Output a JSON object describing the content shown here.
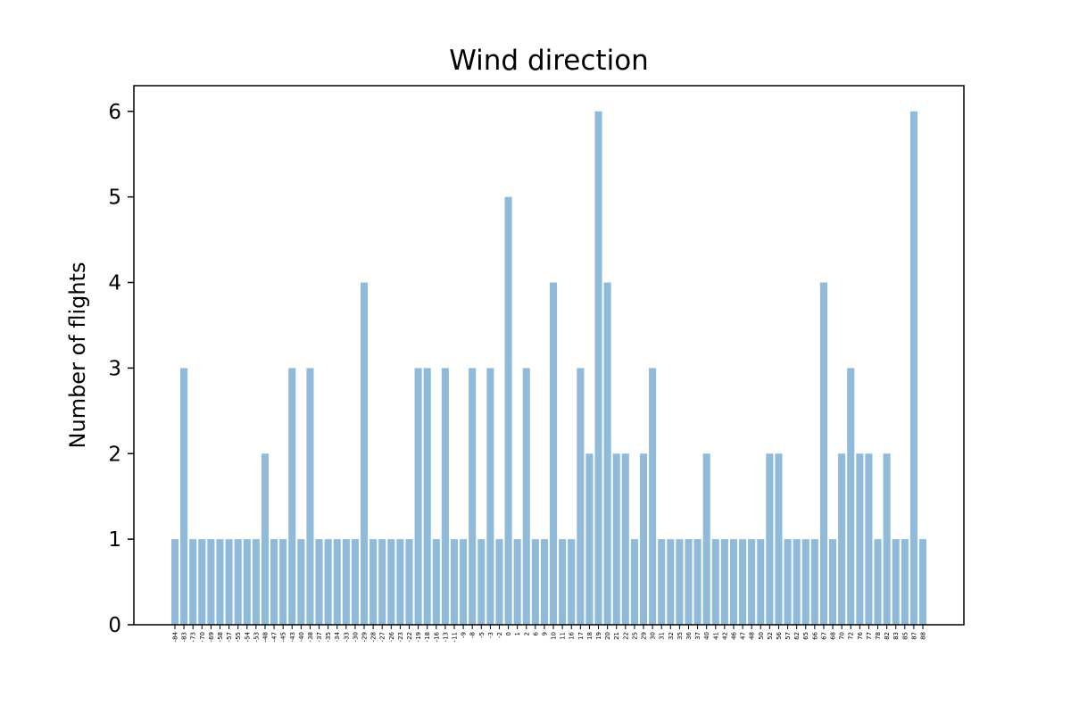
{
  "chart_data": {
    "type": "bar",
    "title": "Wind direction",
    "xlabel": "",
    "ylabel": "Number of flights",
    "ylim": [
      0,
      6.3
    ],
    "yticks": [
      0,
      1,
      2,
      3,
      4,
      5,
      6
    ],
    "grid": false,
    "legend": "none",
    "bar_color": "#8fbad9",
    "categories": [
      "-84",
      "-83",
      "-73",
      "-70",
      "-69",
      "-58",
      "-57",
      "-55",
      "-54",
      "-53",
      "-48",
      "-47",
      "-45",
      "-43",
      "-40",
      "-38",
      "-37",
      "-35",
      "-34",
      "-33",
      "-30",
      "-29",
      "-28",
      "-27",
      "-26",
      "-23",
      "-22",
      "-19",
      "-18",
      "-16",
      "-13",
      "-11",
      "-9",
      "-8",
      "-5",
      "-3",
      "-2",
      "0",
      "1",
      "2",
      "6",
      "9",
      "10",
      "11",
      "16",
      "17",
      "18",
      "19",
      "20",
      "21",
      "22",
      "25",
      "29",
      "30",
      "31",
      "32",
      "35",
      "36",
      "37",
      "40",
      "41",
      "42",
      "46",
      "47",
      "48",
      "50",
      "52",
      "56",
      "57",
      "62",
      "65",
      "66",
      "67",
      "68",
      "70",
      "72",
      "76",
      "77",
      "78",
      "82",
      "83",
      "85",
      "87",
      "88"
    ],
    "values": [
      1,
      3,
      1,
      1,
      1,
      1,
      1,
      1,
      1,
      1,
      2,
      1,
      1,
      3,
      1,
      3,
      1,
      1,
      1,
      1,
      1,
      4,
      1,
      1,
      1,
      1,
      1,
      3,
      3,
      1,
      3,
      1,
      1,
      3,
      1,
      3,
      1,
      5,
      1,
      3,
      1,
      1,
      4,
      1,
      1,
      3,
      2,
      6,
      4,
      2,
      2,
      1,
      2,
      3,
      1,
      1,
      1,
      1,
      1,
      2,
      1,
      1,
      1,
      1,
      1,
      1,
      2,
      2,
      1,
      1,
      1,
      1,
      4,
      1,
      2,
      3,
      2,
      2,
      1,
      2,
      1,
      1,
      6,
      1
    ]
  }
}
